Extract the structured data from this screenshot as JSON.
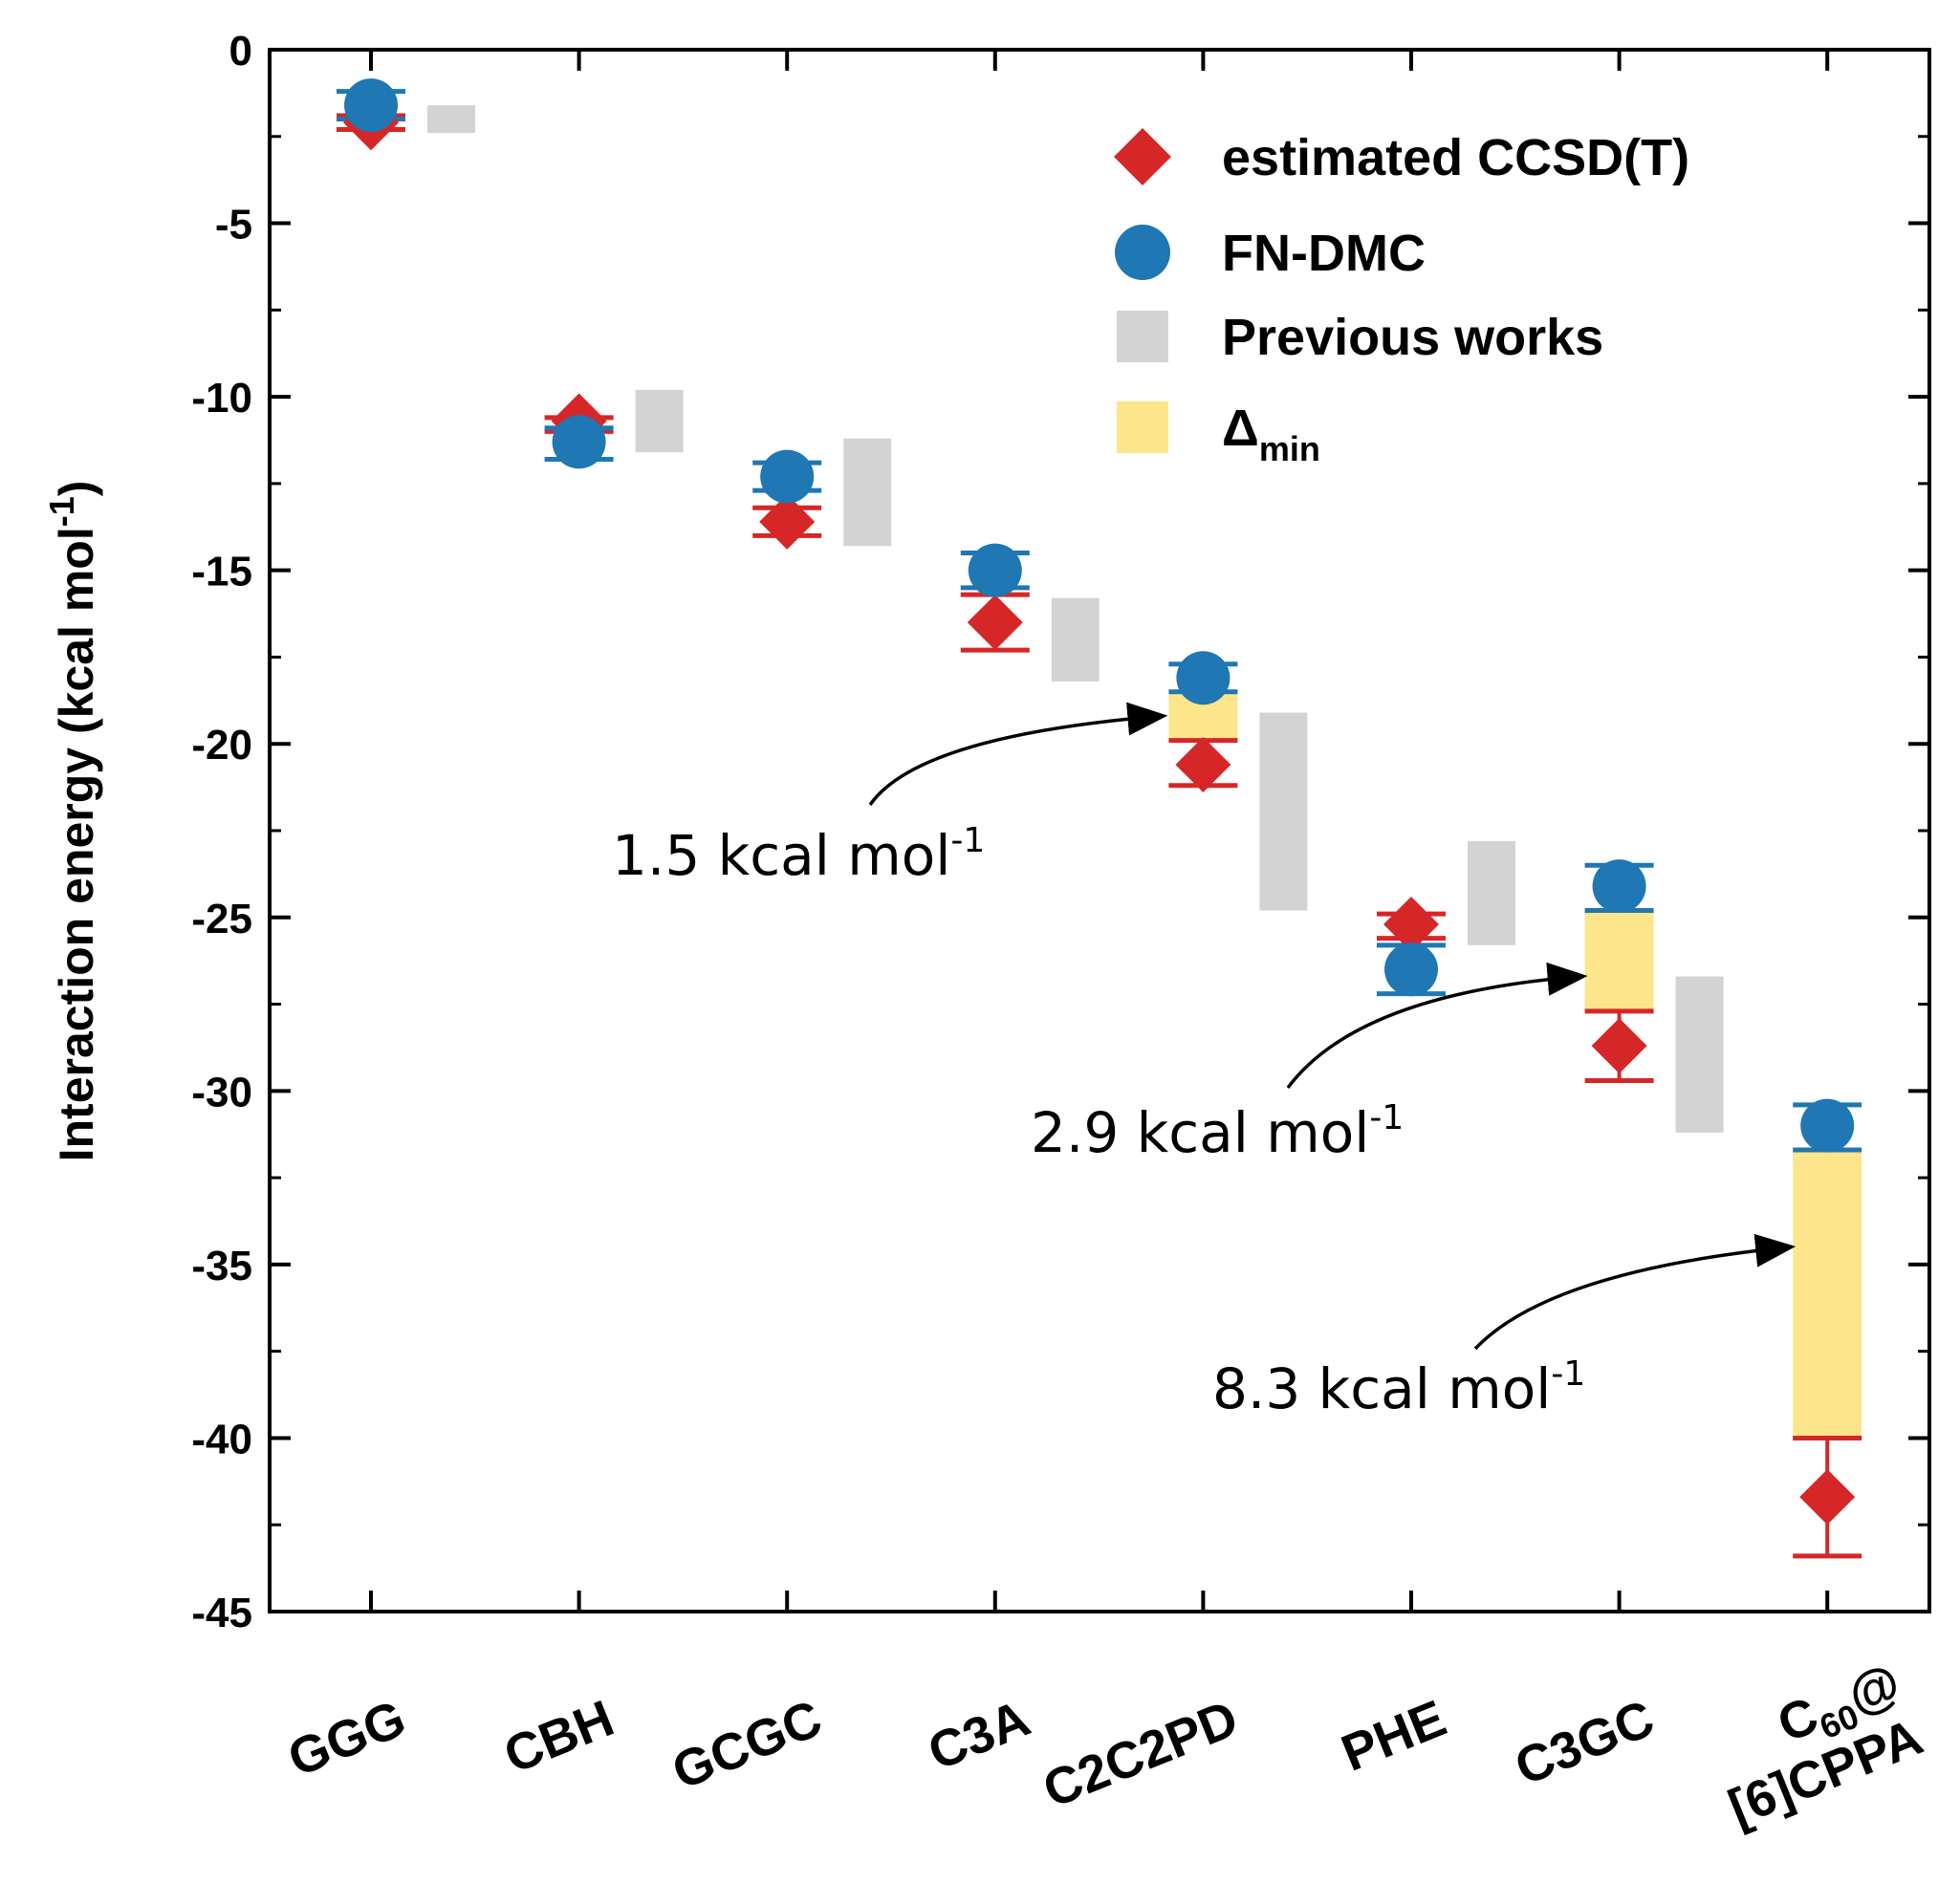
{
  "chart_data": {
    "type": "scatter",
    "title": "",
    "xlabel": "",
    "ylabel": "Interaction energy (kcal mol-1)",
    "ylabel_parts": {
      "main": "Interaction energy (kcal  mol",
      "sup": "-1",
      "end": ")"
    },
    "ylim": [
      -45,
      0
    ],
    "yticks": [
      "0",
      "-5",
      "-10",
      "-15",
      "-20",
      "-25",
      "-30",
      "-35",
      "-40",
      "-45"
    ],
    "ytick_values": [
      0,
      -5,
      -10,
      -15,
      -20,
      -25,
      -30,
      -35,
      -40,
      -45
    ],
    "categories": [
      "GGG",
      "CBH",
      "GCGC",
      "C3A",
      "C2C2PD",
      "PHE",
      "C3GC",
      "C60@[6]CPPA"
    ],
    "category_labels": [
      {
        "lines": [
          {
            "text": "GGG"
          }
        ]
      },
      {
        "lines": [
          {
            "text": "CBH"
          }
        ]
      },
      {
        "lines": [
          {
            "text": "GCGC"
          }
        ]
      },
      {
        "lines": [
          {
            "text": "C3A"
          }
        ]
      },
      {
        "lines": [
          {
            "text": "C2C2PD"
          }
        ]
      },
      {
        "lines": [
          {
            "text": "PHE"
          }
        ]
      },
      {
        "lines": [
          {
            "text": "C3GC"
          }
        ]
      },
      {
        "lines": [
          {
            "text": "C",
            "sub": "60",
            "end": "@"
          },
          {
            "text": "[6]CPPA"
          }
        ]
      }
    ],
    "series": [
      {
        "name": "estimated CCSD(T)",
        "marker": "diamond",
        "color": "#d62728",
        "values": [
          -2.1,
          -10.7,
          -13.6,
          -16.5,
          -20.6,
          -25.2,
          -28.7,
          -41.7
        ],
        "err_low": [
          -2.3,
          -11.0,
          -14.0,
          -17.3,
          -21.2,
          -25.6,
          -29.7,
          -43.4
        ],
        "err_high": [
          -1.9,
          -10.6,
          -13.2,
          -15.7,
          -19.9,
          -24.9,
          -27.7,
          -40.0
        ]
      },
      {
        "name": "FN-DMC",
        "marker": "circle",
        "color": "#1f77b4",
        "values": [
          -1.6,
          -11.3,
          -12.3,
          -15.0,
          -18.1,
          -26.5,
          -24.1,
          -31.0
        ],
        "err_low": [
          -2.0,
          -11.8,
          -12.7,
          -15.5,
          -18.5,
          -27.2,
          -24.8,
          -31.7
        ],
        "err_high": [
          -1.2,
          -10.9,
          -11.9,
          -14.5,
          -17.7,
          -25.8,
          -23.5,
          -30.4
        ]
      },
      {
        "name": "Previous works",
        "marker": "range-bar",
        "color": "#d3d3d3",
        "low": [
          -2.4,
          -11.6,
          -14.3,
          -18.2,
          -24.8,
          -25.8,
          -31.2,
          null
        ],
        "high": [
          -1.6,
          -9.8,
          -11.2,
          -15.8,
          -19.1,
          -22.8,
          -26.7,
          null
        ]
      },
      {
        "name": "Δmin",
        "marker": "range-bar",
        "color": "#fde58b",
        "low": [
          null,
          null,
          null,
          null,
          -19.9,
          null,
          -27.7,
          -40.0
        ],
        "high": [
          null,
          null,
          null,
          null,
          -18.5,
          null,
          -24.8,
          -31.7
        ]
      }
    ],
    "legend": {
      "position": "top-right",
      "entries": [
        {
          "label": "estimated CCSD(T)"
        },
        {
          "label": "FN-DMC"
        },
        {
          "label": "Previous works"
        },
        {
          "label": "Δ",
          "sub": "min"
        }
      ]
    },
    "annotations": [
      {
        "value": "1.5",
        "unit": " kcal mol",
        "sup": "-1",
        "target_category": "C2C2PD",
        "target_y": -19.2
      },
      {
        "value": "2.9",
        "unit": " kcal mol",
        "sup": "-1",
        "target_category": "C3GC",
        "target_y": -26.7
      },
      {
        "value": "8.3",
        "unit": " kcal mol",
        "sup": "-1",
        "target_category": "C60@[6]CPPA",
        "target_y": -34.5
      }
    ]
  }
}
